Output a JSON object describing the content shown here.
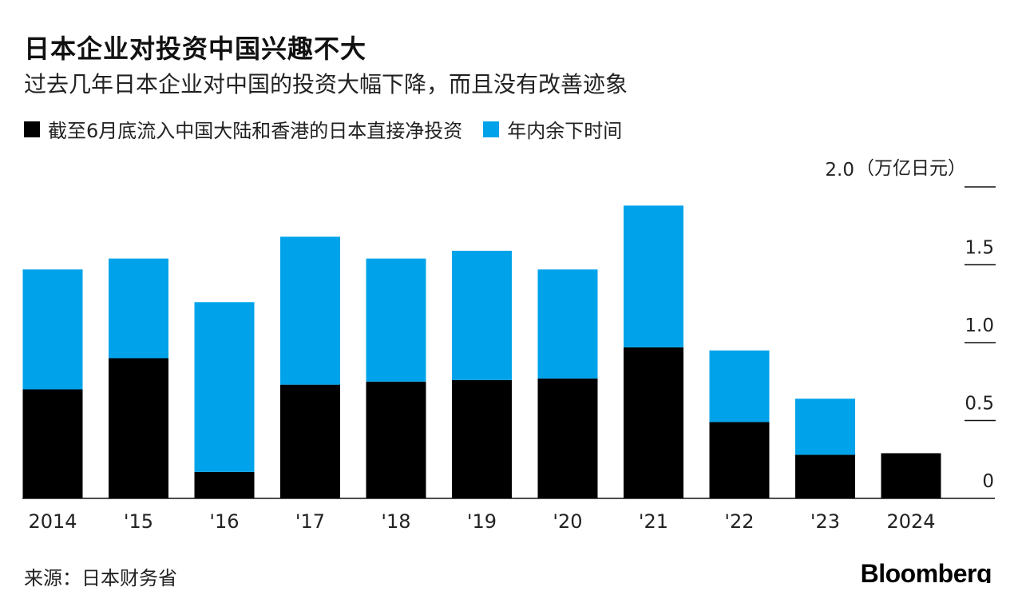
{
  "title": "日本企业对投资中国兴趣不大",
  "subtitle": "过去几年日本企业对中国的投资大幅下降，而且没有改善迹象",
  "source": "来源：日本财务省",
  "logo": "Bloomberg",
  "colors": {
    "black": "#000000",
    "blue": "#00a3ea",
    "axis": "#111111"
  },
  "chart_data": {
    "type": "bar",
    "stacked": true,
    "categories": [
      "2014",
      "'15",
      "'16",
      "'17",
      "'18",
      "'19",
      "'20",
      "'21",
      "'22",
      "'23",
      "2024"
    ],
    "series": [
      {
        "name": "截至6月底流入中国大陆和香港的日本直接净投资",
        "color": "#000000",
        "values": [
          0.7,
          0.9,
          0.17,
          0.73,
          0.75,
          0.76,
          0.77,
          0.97,
          0.49,
          0.28,
          0.29
        ]
      },
      {
        "name": "年内余下时间",
        "color": "#00a3ea",
        "values": [
          0.77,
          0.64,
          1.09,
          0.95,
          0.79,
          0.83,
          0.7,
          0.91,
          0.46,
          0.36,
          0
        ]
      }
    ],
    "ylim": [
      0,
      2.0
    ],
    "yticks": [
      "0",
      "0.5",
      "1.0",
      "1.5",
      "2.0"
    ],
    "yunit": "（万亿日元）",
    "legend": "top-left",
    "axis": "right",
    "grid": false
  }
}
